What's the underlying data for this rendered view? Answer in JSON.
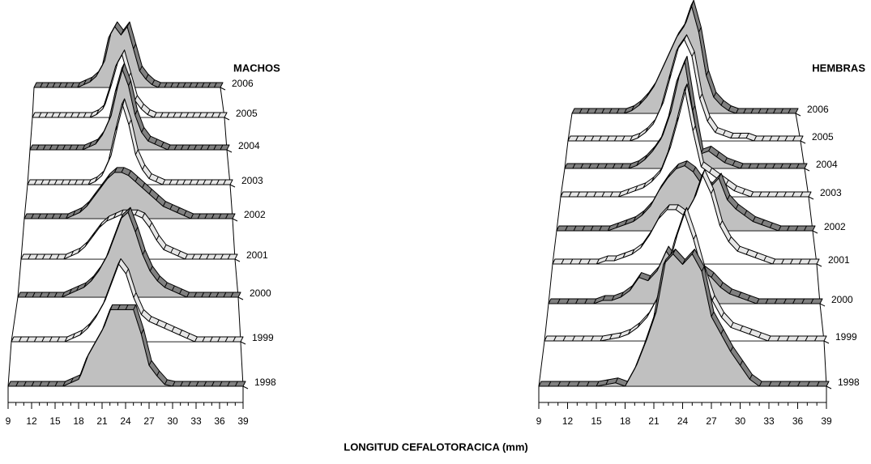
{
  "chart_data": [
    {
      "type": "area3d",
      "title": "MACHOS",
      "xlabel": "LONGITUD CEFALOTORACICA (mm)",
      "x": [
        9,
        10,
        11,
        12,
        13,
        14,
        15,
        16,
        17,
        18,
        19,
        20,
        21,
        22,
        23,
        24,
        25,
        26,
        27,
        28,
        29,
        30,
        31,
        32,
        33,
        34,
        35,
        36,
        37,
        38,
        39
      ],
      "xlim": [
        9,
        39
      ],
      "xticks": [
        9,
        12,
        15,
        18,
        21,
        24,
        27,
        30,
        33,
        36,
        39
      ],
      "series": [
        {
          "name": "1998",
          "color": "#c0c0c0",
          "values": [
            0,
            0,
            0,
            0,
            0,
            0,
            0,
            0,
            1,
            2,
            8,
            12,
            16,
            22,
            22,
            22,
            22,
            15,
            6,
            3,
            0.5,
            0,
            0,
            0,
            0,
            0,
            0,
            0,
            0,
            0,
            0
          ]
        },
        {
          "name": "1999",
          "color": "#ffffff",
          "values": [
            0,
            0,
            0,
            0,
            0,
            0,
            0,
            0,
            1,
            2,
            4,
            7,
            11,
            17,
            23,
            20,
            13,
            8,
            6,
            5,
            4,
            3,
            2,
            1,
            0,
            0,
            0,
            0,
            0,
            0,
            0
          ]
        },
        {
          "name": "2000",
          "color": "#c0c0c0",
          "values": [
            0,
            0,
            0,
            0,
            0,
            0,
            0,
            1,
            2,
            3,
            5,
            8,
            12,
            18,
            24,
            26,
            20,
            13,
            8,
            5,
            3,
            2,
            1,
            0,
            0,
            0,
            0,
            0,
            0,
            0,
            0
          ]
        },
        {
          "name": "2001",
          "color": "#ffffff",
          "values": [
            0,
            0,
            0,
            0,
            0,
            0,
            0,
            1,
            2,
            4,
            7,
            10,
            12,
            13,
            14,
            14,
            14,
            13,
            10,
            6,
            3,
            2,
            1,
            0,
            0,
            0,
            0,
            0,
            0,
            0,
            0
          ]
        },
        {
          "name": "2002",
          "color": "#c0c0c0",
          "values": [
            0,
            0,
            0,
            0,
            0,
            0,
            0,
            1,
            2,
            4,
            7,
            10,
            13,
            15,
            15,
            14,
            12,
            10,
            8,
            6,
            4,
            3,
            2,
            1,
            0,
            0,
            0,
            0,
            0,
            0,
            0
          ]
        },
        {
          "name": "2003",
          "color": "#ffffff",
          "values": [
            0,
            0,
            0,
            0,
            0,
            0,
            0,
            0,
            0,
            0,
            1,
            3,
            8,
            18,
            27,
            20,
            10,
            5,
            2,
            1,
            0,
            0,
            0,
            0,
            0,
            0,
            0,
            0,
            0,
            0,
            0
          ]
        },
        {
          "name": "2004",
          "color": "#c0c0c0",
          "values": [
            0,
            0,
            0,
            0,
            0,
            0,
            0,
            0,
            0,
            1,
            2,
            5,
            10,
            20,
            28,
            22,
            12,
            6,
            3,
            2,
            1,
            0,
            0,
            0,
            0,
            0,
            0,
            0,
            0,
            0,
            0
          ]
        },
        {
          "name": "2005",
          "color": "#ffffff",
          "values": [
            0,
            0,
            0,
            0,
            0,
            0,
            0,
            0,
            0,
            0,
            1,
            3,
            10,
            18,
            22,
            14,
            6,
            3,
            1,
            0,
            0,
            0,
            0,
            0,
            0,
            0,
            0,
            0,
            0,
            0,
            0
          ]
        },
        {
          "name": "2006",
          "color": "#c0c0c0",
          "values": [
            0,
            0,
            0,
            0,
            0,
            0,
            0,
            0,
            1,
            2,
            4,
            8,
            18,
            22,
            19,
            22,
            14,
            6,
            3,
            1,
            0,
            0,
            0,
            0,
            0,
            0,
            0,
            0,
            0,
            0,
            0
          ]
        }
      ]
    },
    {
      "type": "area3d",
      "title": "HEMBRAS",
      "x": [
        9,
        10,
        11,
        12,
        13,
        14,
        15,
        16,
        17,
        18,
        19,
        20,
        21,
        22,
        23,
        24,
        25,
        26,
        27,
        28,
        29,
        30,
        31,
        32,
        33,
        34,
        35,
        36,
        37,
        38,
        39
      ],
      "xlim": [
        9,
        39
      ],
      "xticks": [
        9,
        12,
        15,
        18,
        21,
        24,
        27,
        30,
        33,
        36,
        39
      ],
      "series": [
        {
          "name": "1998",
          "color": "#c0c0c0",
          "values": [
            0,
            0,
            0,
            0,
            0,
            0,
            0,
            0.5,
            1,
            0,
            5,
            12,
            20,
            35,
            38,
            35,
            38,
            33,
            20,
            15,
            10,
            6,
            2,
            0,
            0,
            0,
            0,
            0,
            0,
            0,
            0
          ]
        },
        {
          "name": "1999",
          "color": "#ffffff",
          "values": [
            0,
            0,
            0,
            0,
            0,
            0,
            0,
            0.5,
            1,
            2,
            4,
            7,
            12,
            20,
            30,
            38,
            30,
            20,
            12,
            7,
            4,
            3,
            2,
            1,
            0,
            0,
            0,
            0,
            0,
            0,
            0
          ]
        },
        {
          "name": "2000",
          "color": "#c0c0c0",
          "values": [
            0,
            0,
            0,
            0,
            0,
            0,
            1,
            1,
            2,
            4,
            8,
            7,
            10,
            16,
            12,
            14,
            12,
            10,
            8,
            5,
            3,
            2,
            1,
            0,
            0,
            0,
            0,
            0,
            0,
            0,
            0
          ]
        },
        {
          "name": "2001",
          "color": "#ffffff",
          "values": [
            0,
            0,
            0,
            0,
            0,
            0,
            1,
            1,
            2,
            3,
            5,
            9,
            14,
            17,
            17,
            15,
            20,
            28,
            22,
            12,
            7,
            4,
            3,
            2,
            1,
            0,
            0,
            0,
            0,
            0,
            0
          ]
        },
        {
          "name": "2002",
          "color": "#c0c0c0",
          "values": [
            0,
            0,
            0,
            0,
            0,
            0,
            0,
            1,
            2,
            3,
            5,
            8,
            13,
            17,
            20,
            21,
            19,
            15,
            14,
            17,
            10,
            7,
            5,
            3,
            2,
            1,
            0,
            0,
            0,
            0,
            0
          ]
        },
        {
          "name": "2003",
          "color": "#ffffff",
          "values": [
            0,
            0,
            0,
            0,
            0,
            0,
            0,
            0,
            1,
            2,
            3,
            5,
            8,
            15,
            25,
            36,
            22,
            10,
            8,
            6,
            4,
            2,
            1,
            0,
            0,
            0,
            0,
            0,
            0,
            0,
            0
          ]
        },
        {
          "name": "2004",
          "color": "#c0c0c0",
          "values": [
            0,
            0,
            0,
            0,
            0,
            0,
            0,
            0,
            0,
            1,
            3,
            6,
            10,
            18,
            30,
            37,
            20,
            5,
            6,
            4,
            2,
            1,
            0,
            0,
            0,
            0,
            0,
            0,
            0,
            0,
            0
          ]
        },
        {
          "name": "2005",
          "color": "#ffffff",
          "values": [
            0,
            0,
            0,
            0,
            0,
            0,
            0,
            0,
            0,
            1,
            3,
            6,
            12,
            22,
            32,
            36,
            30,
            15,
            7,
            3,
            2,
            1,
            1,
            1,
            0,
            0,
            0,
            0,
            0,
            0,
            0
          ]
        },
        {
          "name": "2006",
          "color": "#c0c0c0",
          "values": [
            0,
            0,
            0,
            0,
            0,
            0,
            0,
            0,
            1,
            3,
            6,
            10,
            16,
            22,
            28,
            32,
            40,
            30,
            14,
            6,
            3,
            1,
            0,
            0,
            0,
            0,
            0,
            0,
            0,
            0,
            0
          ]
        }
      ]
    }
  ]
}
